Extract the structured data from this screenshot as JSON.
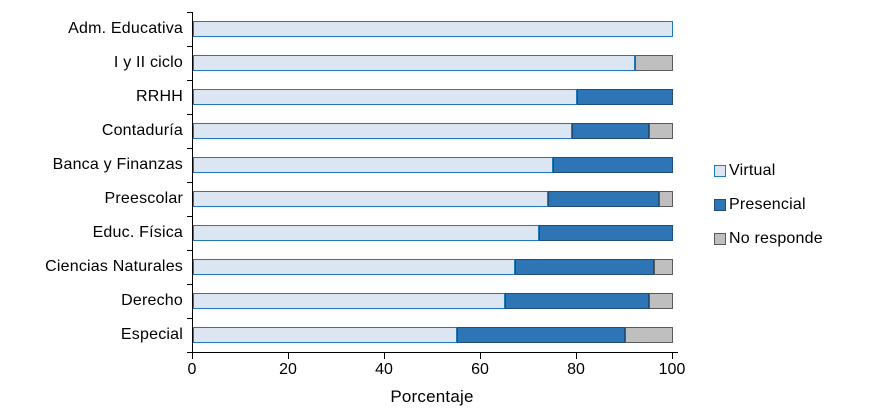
{
  "chart_data": {
    "type": "bar",
    "orientation": "horizontal",
    "stacked": true,
    "title": "",
    "xlabel": "Porcentaje",
    "xlim": [
      0,
      100
    ],
    "x_ticks": [
      0,
      20,
      40,
      60,
      80,
      100
    ],
    "grid": false,
    "legend_position": "right",
    "categories": [
      "Adm. Educativa",
      "I y II ciclo",
      "RRHH",
      "Contaduría",
      "Banca y Finanzas",
      "Preescolar",
      "Educ. Física",
      "Ciencias Naturales",
      "Derecho",
      "Especial"
    ],
    "series": [
      {
        "name": "Virtual",
        "fill": "#DCE6F2",
        "border": "#1F78B8",
        "values": [
          100,
          92,
          80,
          79,
          75,
          74,
          72,
          67,
          65,
          55
        ]
      },
      {
        "name": "Presencial",
        "fill": "#2E75B6",
        "border": "#1F4E79",
        "values": [
          0,
          0,
          20,
          16,
          25,
          23,
          28,
          29,
          30,
          35
        ]
      },
      {
        "name": "No responde",
        "fill": "#BFBFBF",
        "border": "#595959",
        "values": [
          0,
          8,
          0,
          5,
          0,
          3,
          0,
          4,
          5,
          10
        ]
      }
    ],
    "colors": {
      "axis": "#000000",
      "background": "#FFFFFF"
    }
  }
}
